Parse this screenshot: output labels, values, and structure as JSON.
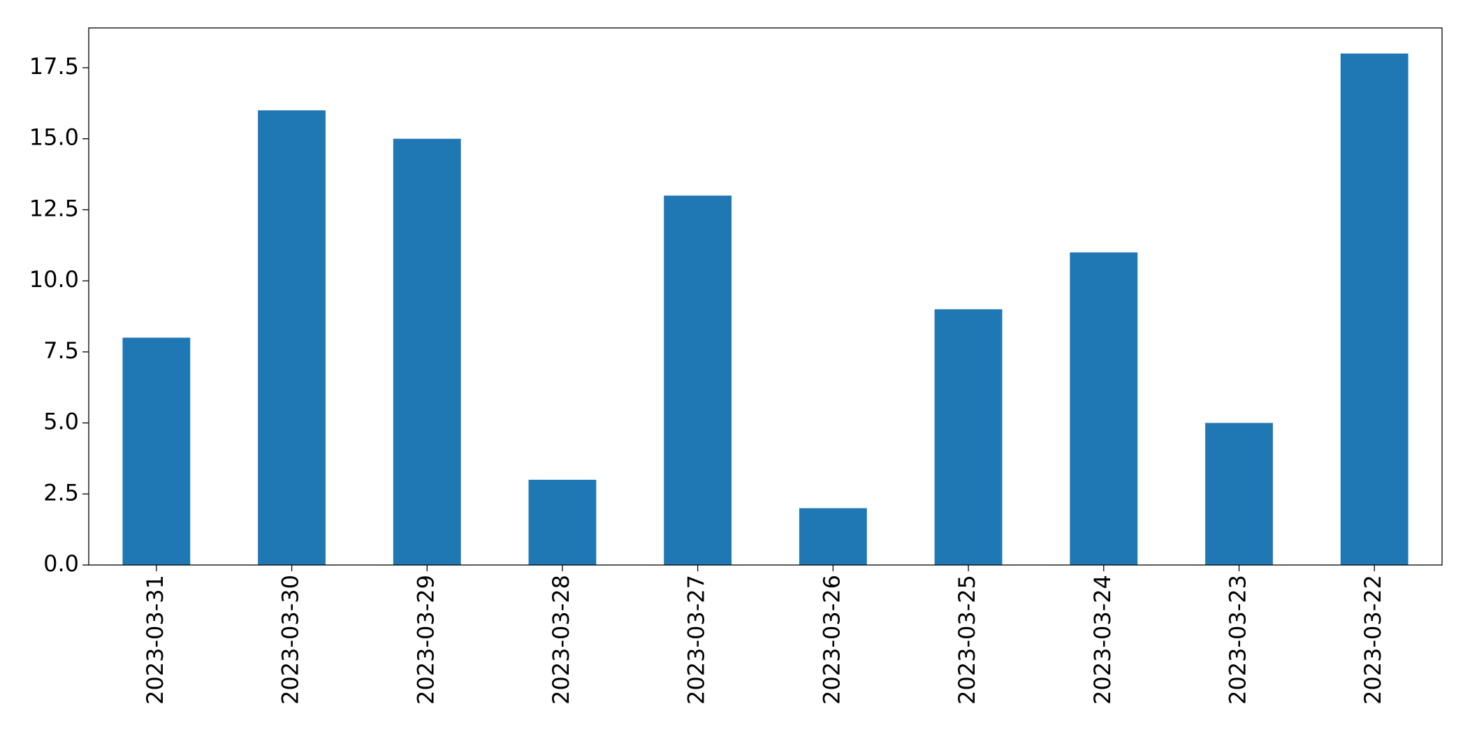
{
  "chart_data": {
    "type": "bar",
    "categories": [
      "2023-03-31",
      "2023-03-30",
      "2023-03-29",
      "2023-03-28",
      "2023-03-27",
      "2023-03-26",
      "2023-03-25",
      "2023-03-24",
      "2023-03-23",
      "2023-03-22"
    ],
    "values": [
      8,
      16,
      15,
      3,
      13,
      2,
      9,
      11,
      5,
      18
    ],
    "color": "#1f77b4",
    "ylim": [
      0,
      18.9
    ],
    "yticks": [
      {
        "value": 0,
        "label": "0.0"
      },
      2.5,
      {
        "value": 5,
        "label": "5.0"
      },
      7.5,
      {
        "value": 10,
        "label": "10.0"
      },
      12.5,
      {
        "value": 15,
        "label": "15.0"
      },
      17.5
    ],
    "grid": false
  }
}
